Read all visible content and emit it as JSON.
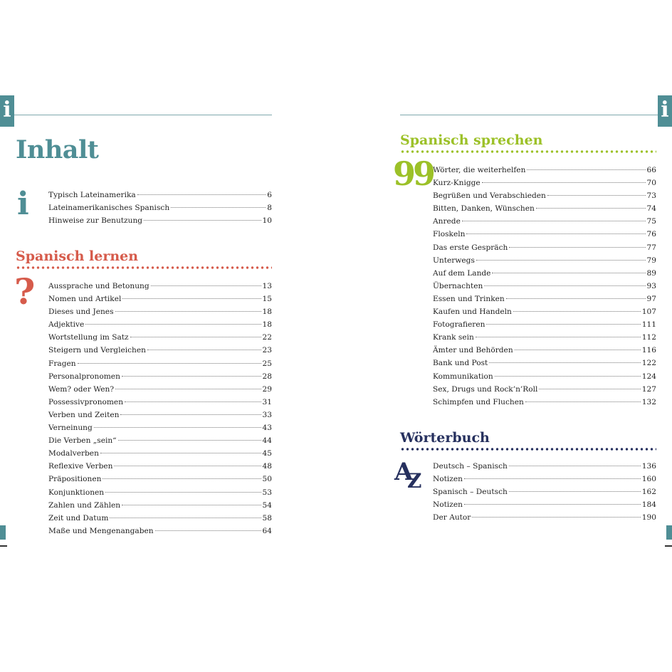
{
  "colors": {
    "teal": "#4f8e95",
    "red": "#d65b4b",
    "green": "#9cc128",
    "navy": "#26305e"
  },
  "left_page": {
    "tab_icon": "info-i",
    "title": "Inhalt",
    "info_section": {
      "icon": "info-i",
      "icon_glyph": "i",
      "items": [
        {
          "label": "Typisch Lateinamerika",
          "page": "6"
        },
        {
          "label": "Lateinamerikanisches Spanisch",
          "page": "8"
        },
        {
          "label": "Hinweise zur Benutzung",
          "page": "10"
        }
      ]
    },
    "lernen_section": {
      "heading": "Spanisch lernen",
      "icon": "question-mark",
      "icon_glyph": "?",
      "items": [
        {
          "label": "Aussprache und Betonung",
          "page": "13"
        },
        {
          "label": "Nomen und Artikel",
          "page": "15"
        },
        {
          "label": "Dieses und Jenes",
          "page": "18"
        },
        {
          "label": "Adjektive",
          "page": "18"
        },
        {
          "label": "Wortstellung im Satz",
          "page": "22"
        },
        {
          "label": "Steigern und Vergleichen",
          "page": "23"
        },
        {
          "label": "Fragen",
          "page": "25"
        },
        {
          "label": "Personalpronomen",
          "page": "28"
        },
        {
          "label": "Wem? oder Wen?",
          "page": "29"
        },
        {
          "label": "Possessivpronomen",
          "page": "31"
        },
        {
          "label": "Verben und Zeiten",
          "page": "33"
        },
        {
          "label": "Verneinung",
          "page": "43"
        },
        {
          "label": "Die Verben „sein“",
          "page": "44"
        },
        {
          "label": "Modalverben",
          "page": "45"
        },
        {
          "label": "Reflexive Verben",
          "page": "48"
        },
        {
          "label": "Präpositionen",
          "page": "50"
        },
        {
          "label": "Konjunktionen",
          "page": "53"
        },
        {
          "label": "Zahlen und Zählen",
          "page": "54"
        },
        {
          "label": "Zeit und Datum",
          "page": "58"
        },
        {
          "label": "Maße und Mengenangaben",
          "page": "64"
        }
      ]
    }
  },
  "right_page": {
    "tab_icon": "info-i",
    "sprechen_section": {
      "heading": "Spanisch sprechen",
      "icon": "speech-quote",
      "icon_glyph": "99",
      "items": [
        {
          "label": "Wörter, die weiterhelfen",
          "page": "66"
        },
        {
          "label": "Kurz-Knigge",
          "page": "70"
        },
        {
          "label": "Begrüßen und Verabschieden",
          "page": "73"
        },
        {
          "label": "Bitten, Danken, Wünschen",
          "page": "74"
        },
        {
          "label": "Anrede",
          "page": "75"
        },
        {
          "label": "Floskeln",
          "page": "76"
        },
        {
          "label": "Das erste Gespräch",
          "page": "77"
        },
        {
          "label": "Unterwegs",
          "page": "79"
        },
        {
          "label": "Auf dem Lande",
          "page": "89"
        },
        {
          "label": "Übernachten",
          "page": "93"
        },
        {
          "label": "Essen und Trinken",
          "page": "97"
        },
        {
          "label": "Kaufen und Handeln",
          "page": "107"
        },
        {
          "label": "Fotografieren",
          "page": "111"
        },
        {
          "label": "Krank sein",
          "page": "112"
        },
        {
          "label": "Ämter und Behörden",
          "page": "116"
        },
        {
          "label": "Bank und Post",
          "page": "122"
        },
        {
          "label": "Kommunikation",
          "page": "124"
        },
        {
          "label": "Sex, Drugs und Rock’n’Roll",
          "page": "127"
        },
        {
          "label": "Schimpfen und Fluchen",
          "page": "132"
        }
      ]
    },
    "woerterbuch_section": {
      "heading": "Wörterbuch",
      "icon": "a-z-dictionary",
      "icon_glyph_a": "A",
      "icon_glyph_z": "Z",
      "items": [
        {
          "label": "Deutsch – Spanisch",
          "page": "136"
        },
        {
          "label": "Notizen",
          "page": "160"
        },
        {
          "label": "Spanisch – Deutsch",
          "page": "162"
        },
        {
          "label": "Notizen",
          "page": "184"
        },
        {
          "label": "Der Autor",
          "page": "190"
        }
      ]
    }
  }
}
